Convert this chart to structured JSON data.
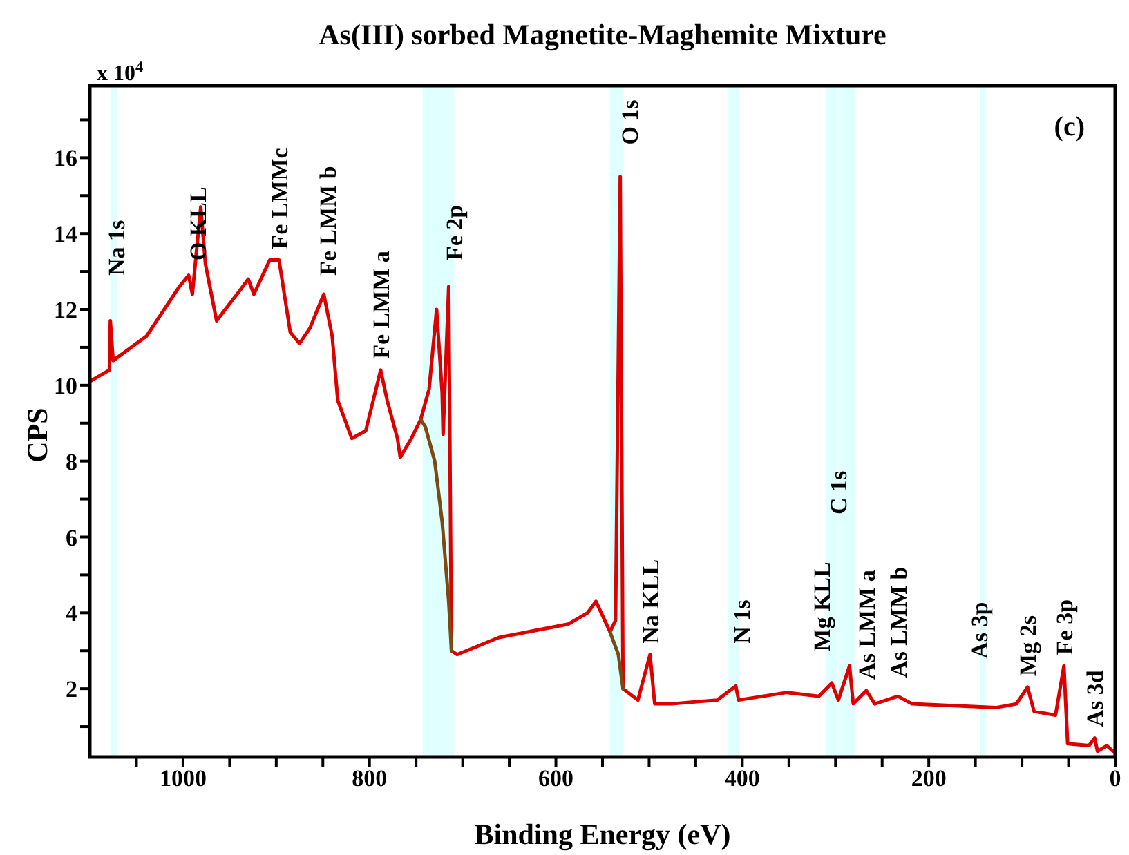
{
  "chart_data": {
    "type": "line",
    "title": "As(III) sorbed Magnetite-Maghemite Mixture",
    "xlabel": "Binding Energy (eV)",
    "ylabel": "CPS",
    "xlim": [
      1100,
      0
    ],
    "xticks": [
      {
        "value": 1050,
        "label": null
      },
      1000,
      {
        "value": 950,
        "label": null
      },
      {
        "value": 900,
        "label": null
      },
      {
        "value": 850,
        "label": null
      },
      800,
      {
        "value": 750,
        "label": null
      },
      {
        "value": 700,
        "label": null
      },
      {
        "value": 650,
        "label": null
      },
      600,
      {
        "value": 550,
        "label": null
      },
      {
        "value": 500,
        "label": null
      },
      {
        "value": 450,
        "label": null
      },
      400,
      {
        "value": 350,
        "label": null
      },
      {
        "value": 300,
        "label": null
      },
      {
        "value": 250,
        "label": null
      },
      200,
      {
        "value": 150,
        "label": null
      },
      {
        "value": 100,
        "label": null
      },
      {
        "value": 50,
        "label": null
      },
      0
    ],
    "ylim": [
      0.2,
      17.9
    ],
    "yticks": [
      {
        "value": 1,
        "label": null
      },
      2,
      {
        "value": 3,
        "label": null
      },
      4,
      {
        "value": 5,
        "label": null
      },
      6,
      {
        "value": 7,
        "label": null
      },
      8,
      {
        "value": 9,
        "label": null
      },
      10,
      {
        "value": 11,
        "label": null
      },
      12,
      {
        "value": 13,
        "label": null
      },
      14,
      {
        "value": 15,
        "label": null
      },
      16,
      {
        "value": 17,
        "label": null
      }
    ],
    "series": [
      {
        "color": "#dd0000",
        "x": [
          1100,
          1079,
          1078,
          1075,
          1039,
          1004,
          994,
          990,
          981,
          976,
          964,
          939,
          930,
          924,
          907,
          897,
          885,
          875,
          864,
          849,
          840,
          834,
          819,
          804,
          796,
          788,
          781,
          770,
          767,
          755,
          745,
          736,
          728,
          722,
          721,
          715,
          712,
          706,
          661,
          587,
          566,
          557,
          542,
          536,
          531,
          528,
          512,
          499,
          494,
          476,
          427,
          407,
          404,
          352,
          318,
          304,
          297,
          285,
          281,
          267,
          258,
          233,
          218,
          128,
          106,
          94,
          87,
          64,
          55,
          51,
          28,
          22,
          19,
          9,
          0
        ],
        "values": [
          10.1,
          10.4,
          11.7,
          10.65,
          11.3,
          12.6,
          12.9,
          12.4,
          14.7,
          13.2,
          11.7,
          12.5,
          12.8,
          12.4,
          13.3,
          13.3,
          11.4,
          11.1,
          11.5,
          12.4,
          11.3,
          9.6,
          8.6,
          8.8,
          9.6,
          10.4,
          9.6,
          8.6,
          8.1,
          8.6,
          9.1,
          9.9,
          12.0,
          9.8,
          8.7,
          12.6,
          3.0,
          2.9,
          3.35,
          3.7,
          4.0,
          4.3,
          3.5,
          3.8,
          15.5,
          2.0,
          1.7,
          2.9,
          1.6,
          1.6,
          1.7,
          2.07,
          1.7,
          1.9,
          1.8,
          2.15,
          1.7,
          2.6,
          1.6,
          1.95,
          1.6,
          1.8,
          1.6,
          1.5,
          1.6,
          2.04,
          1.4,
          1.3,
          2.6,
          0.55,
          0.5,
          0.7,
          0.35,
          0.5,
          0.3
        ]
      },
      {
        "color": "#7a4a10",
        "x": [
          745,
          740,
          730,
          722,
          715,
          712,
          627,
          542,
          533,
          528
        ],
        "values": [
          9.1,
          8.9,
          8.0,
          6.4,
          4.3,
          3.0,
          null,
          3.5,
          2.9,
          2.0
        ]
      }
    ],
    "bands": [
      {
        "axis": "x",
        "from": 1078,
        "to": 1070,
        "color": "#e0ffff"
      },
      {
        "axis": "x",
        "from": 743,
        "to": 709,
        "color": "#e0ffff"
      },
      {
        "axis": "x",
        "from": 542,
        "to": 528,
        "color": "#e0ffff"
      },
      {
        "axis": "x",
        "from": 415,
        "to": 403,
        "color": "#e0ffff"
      },
      {
        "axis": "x",
        "from": 310,
        "to": 298,
        "color": "#e0ffff"
      },
      {
        "axis": "x",
        "from": 297,
        "to": 279,
        "color": "#e0ffff"
      },
      {
        "axis": "x",
        "from": 145,
        "to": 139,
        "color": "#e0ffff"
      }
    ],
    "annotations": [
      "x 10$^{4}$",
      "(c)",
      {
        "text": "Na 1s",
        "x": 1072,
        "y": 12.6
      },
      {
        "text": "O KLL",
        "x": 984,
        "y": 13.0
      },
      {
        "text": "Fe LMMc",
        "x": 897,
        "y": 13.3
      },
      {
        "text": "Fe LMM b",
        "x": 845,
        "y": 12.6
      },
      {
        "text": "Fe LMM a",
        "x": 788,
        "y": 10.4
      },
      {
        "text": "Fe 2p",
        "x": 709,
        "y": 13.0
      },
      {
        "text": "O 1s",
        "x": 521,
        "y": 16.05
      },
      {
        "text": "Na KLL",
        "x": 499,
        "y": 2.9
      },
      {
        "text": "N 1s",
        "x": 401,
        "y": 2.9
      },
      {
        "text": "Mg KLL",
        "x": 315,
        "y": 2.7
      },
      {
        "text": "C 1s",
        "x": 297,
        "y": 6.3
      },
      {
        "text": "As LMM a",
        "x": 267,
        "y": 1.95
      },
      {
        "text": "As LMM b",
        "x": 233,
        "y": 2.0
      },
      {
        "text": "As 3p",
        "x": 146,
        "y": 2.5
      },
      {
        "text": "Mg 2s",
        "x": 94,
        "y": 2.04
      },
      {
        "text": "Fe 3p",
        "x": 55,
        "y": 2.6
      },
      {
        "text": "As 3d",
        "x": 22,
        "y": 0.7
      }
    ]
  }
}
